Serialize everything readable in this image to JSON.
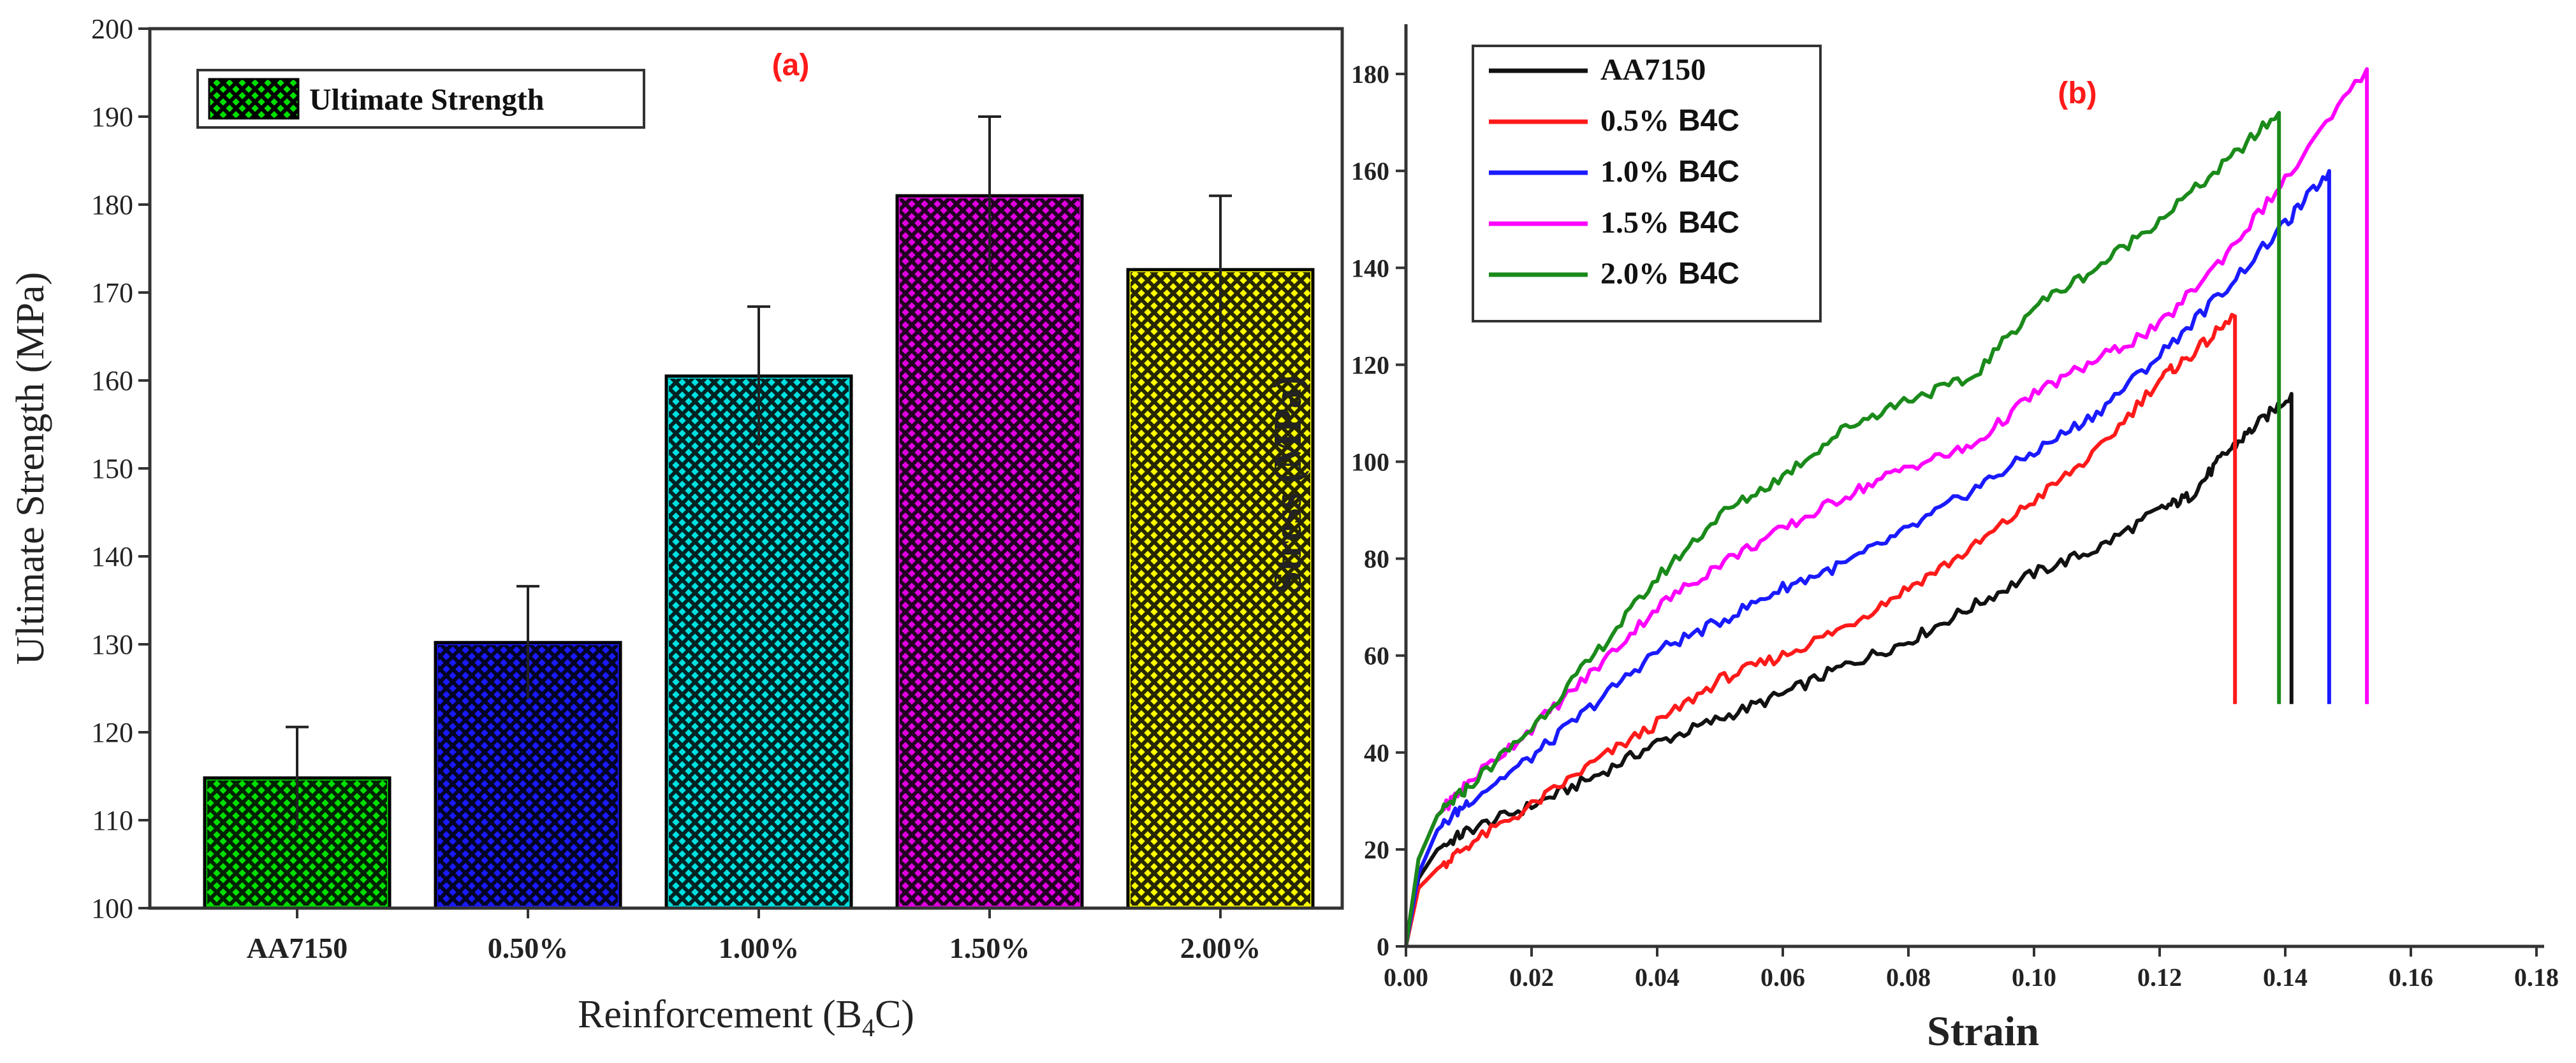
{
  "chart_data": [
    {
      "type": "bar",
      "panel_label": "(a)",
      "title": "",
      "categories": [
        "AA7150",
        "0.50%",
        "1.00%",
        "1.50%",
        "2.00%"
      ],
      "values": [
        114.8,
        130.2,
        160.5,
        181.0,
        172.6
      ],
      "errors": [
        5.8,
        6.4,
        7.9,
        9.0,
        8.4
      ],
      "colors": [
        "#00e000",
        "#1a1aff",
        "#00e0e0",
        "#e000e0",
        "#ffff00"
      ],
      "legend": "Ultimate Strength",
      "legend_position": "top-left",
      "xlabel": "Reinforcement (B",
      "xlabel_sub": "4",
      "xlabel_end": "C)",
      "ylabel": "Ultimate Strength (MPa)",
      "ylim": [
        100,
        200
      ],
      "yticks": [
        "100",
        "110",
        "120",
        "130",
        "140",
        "150",
        "160",
        "170",
        "180",
        "190",
        "200"
      ]
    },
    {
      "type": "line",
      "panel_label": "(b)",
      "title": "",
      "xlabel": "Strain",
      "ylabel": "Stress (MPa)",
      "xlim": [
        0,
        0.18
      ],
      "ylim": [
        0,
        190
      ],
      "xticks": [
        "0.00",
        "0.02",
        "0.04",
        "0.06",
        "0.08",
        "0.10",
        "0.12",
        "0.14",
        "0.16",
        "0.18"
      ],
      "yticks": [
        "0",
        "20",
        "40",
        "60",
        "80",
        "100",
        "120",
        "140",
        "160",
        "180"
      ],
      "legend_position": "top-left",
      "series": [
        {
          "name": "AA7150",
          "name_suffix": "",
          "color": "#111111",
          "drop_to": 50,
          "x": [
            0,
            0.002,
            0.005,
            0.01,
            0.02,
            0.03,
            0.04,
            0.05,
            0.06,
            0.07,
            0.08,
            0.09,
            0.1,
            0.11,
            0.12,
            0.125,
            0.13,
            0.135,
            0.141
          ],
          "y": [
            0,
            14,
            20,
            24,
            29,
            35,
            42,
            47,
            52,
            58,
            63,
            70,
            77,
            82,
            90,
            93,
            101,
            107,
            114
          ]
        },
        {
          "name": "0.5%",
          "name_suffix": "B4C",
          "color": "#ff1a1a",
          "drop_to": 50,
          "x": [
            0,
            0.002,
            0.005,
            0.01,
            0.02,
            0.03,
            0.04,
            0.05,
            0.06,
            0.07,
            0.08,
            0.09,
            0.1,
            0.11,
            0.12,
            0.125,
            0.132
          ],
          "y": [
            0,
            12,
            16,
            21,
            29,
            38,
            46,
            55,
            60,
            66,
            74,
            82,
            92,
            102,
            117,
            122,
            130
          ]
        },
        {
          "name": "1.0%",
          "name_suffix": "B4C",
          "color": "#1a1aff",
          "drop_to": 50,
          "x": [
            0,
            0.002,
            0.005,
            0.01,
            0.02,
            0.03,
            0.04,
            0.05,
            0.06,
            0.07,
            0.08,
            0.09,
            0.1,
            0.11,
            0.12,
            0.13,
            0.14,
            0.147
          ],
          "y": [
            0,
            15,
            24,
            30,
            39,
            50,
            61,
            67,
            74,
            79,
            86,
            94,
            102,
            110,
            122,
            135,
            149,
            160
          ]
        },
        {
          "name": "1.5%",
          "name_suffix": "B4C",
          "color": "#ff00ff",
          "drop_to": 50,
          "x": [
            0,
            0.002,
            0.005,
            0.01,
            0.02,
            0.03,
            0.04,
            0.05,
            0.06,
            0.07,
            0.08,
            0.09,
            0.1,
            0.11,
            0.12,
            0.13,
            0.14,
            0.153
          ],
          "y": [
            0,
            18,
            27,
            34,
            45,
            57,
            70,
            79,
            86,
            93,
            99,
            103,
            114,
            121,
            128,
            142,
            158,
            181
          ]
        },
        {
          "name": "2.0%",
          "name_suffix": "B4C",
          "color": "#1a8a1a",
          "drop_to": 50,
          "x": [
            0,
            0.002,
            0.005,
            0.01,
            0.02,
            0.03,
            0.04,
            0.05,
            0.06,
            0.07,
            0.08,
            0.09,
            0.1,
            0.11,
            0.12,
            0.13,
            0.139
          ],
          "y": [
            0,
            18,
            27,
            33,
            45,
            60,
            76,
            89,
            97,
            107,
            113,
            117,
            132,
            140,
            150,
            161,
            172
          ]
        }
      ]
    }
  ]
}
